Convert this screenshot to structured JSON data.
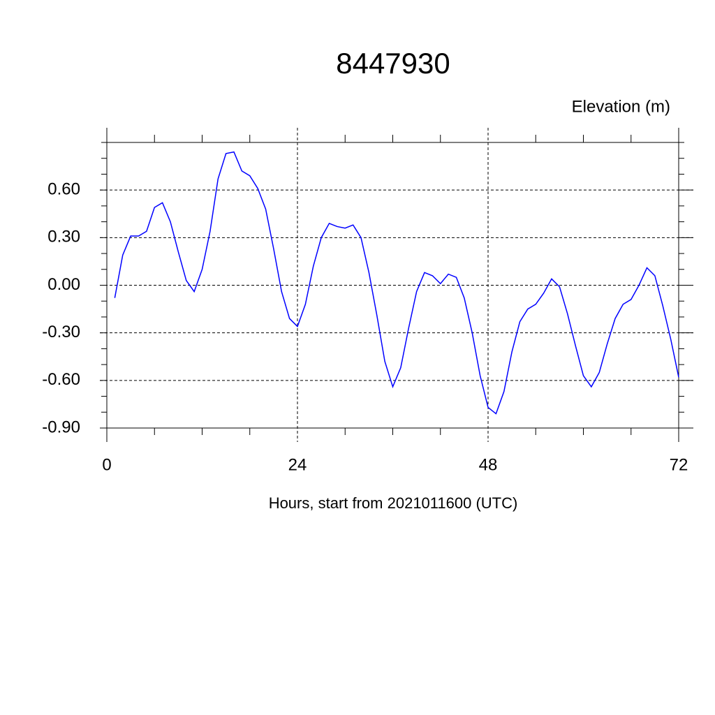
{
  "chart_data": {
    "type": "line",
    "title": "8447930",
    "y_label": "Elevation (m)",
    "x_label": "Hours, start from 2021011600 (UTC)",
    "x": [
      1,
      2,
      3,
      4,
      5,
      6,
      7,
      8,
      9,
      10,
      11,
      12,
      13,
      14,
      15,
      16,
      17,
      18,
      19,
      20,
      21,
      22,
      23,
      24,
      25,
      26,
      27,
      28,
      29,
      30,
      31,
      32,
      33,
      34,
      35,
      36,
      37,
      38,
      39,
      40,
      41,
      42,
      43,
      44,
      45,
      46,
      47,
      48,
      49,
      50,
      51,
      52,
      53,
      54,
      55,
      56,
      57,
      58,
      59,
      60,
      61,
      62,
      63,
      64,
      65,
      66,
      67,
      68,
      69,
      70,
      71,
      72
    ],
    "series": [
      {
        "name": "Elevation",
        "color": "#0000ff",
        "values": [
          -0.08,
          0.19,
          0.31,
          0.31,
          0.34,
          0.49,
          0.52,
          0.4,
          0.21,
          0.03,
          -0.04,
          0.1,
          0.34,
          0.67,
          0.83,
          0.84,
          0.72,
          0.69,
          0.61,
          0.48,
          0.23,
          -0.04,
          -0.21,
          -0.26,
          -0.12,
          0.12,
          0.3,
          0.39,
          0.37,
          0.36,
          0.38,
          0.3,
          0.08,
          -0.19,
          -0.48,
          -0.64,
          -0.52,
          -0.27,
          -0.04,
          0.08,
          0.06,
          0.01,
          0.07,
          0.05,
          -0.08,
          -0.3,
          -0.57,
          -0.77,
          -0.81,
          -0.67,
          -0.42,
          -0.23,
          -0.15,
          -0.12,
          -0.05,
          0.04,
          -0.01,
          -0.18,
          -0.38,
          -0.57,
          -0.64,
          -0.55,
          -0.37,
          -0.21,
          -0.12,
          -0.09,
          0,
          0.11,
          0.06,
          -0.13,
          -0.34,
          -0.58
        ]
      }
    ],
    "xlim": [
      0,
      72
    ],
    "xticks": [
      0,
      24,
      48,
      72
    ],
    "ylim": [
      -0.9,
      0.9
    ],
    "yticks": [
      {
        "value": -0.9,
        "label": "-0.90"
      },
      {
        "value": -0.6,
        "label": "-0.60"
      },
      {
        "value": -0.3,
        "label": "-0.30"
      },
      {
        "value": 0,
        "label": "0.00"
      },
      {
        "value": 0.3,
        "label": "0.30"
      },
      {
        "value": 0.6,
        "label": "0.60"
      }
    ],
    "grid": true
  }
}
